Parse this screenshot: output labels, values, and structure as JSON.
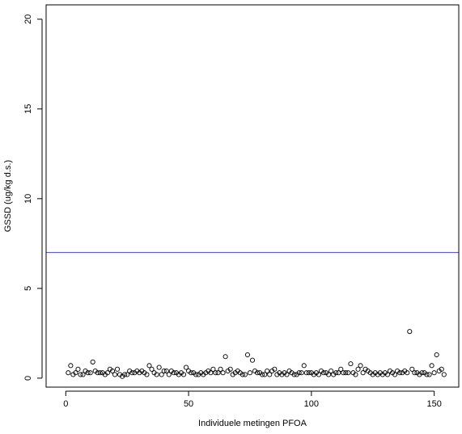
{
  "chart_data": {
    "type": "scatter",
    "title": "",
    "xlabel": "Individuele metingen PFOA",
    "ylabel": "GSSD (ug/kg d.s.)",
    "xlim": [
      -8,
      160
    ],
    "ylim": [
      -0.5,
      20.8
    ],
    "xticks": [
      0,
      50,
      100,
      150
    ],
    "yticks": [
      0,
      5,
      10,
      15,
      20
    ],
    "grid": false,
    "legend": "none",
    "marker": "open-circle",
    "marker_color": "#000000",
    "reference_line": {
      "y": 7.0,
      "color": "#5b5bd6"
    },
    "series": [
      {
        "x": [
          1,
          2,
          3,
          4,
          5,
          6,
          7,
          8,
          9,
          10,
          11,
          12,
          13,
          14,
          15,
          16,
          17,
          18,
          19,
          20,
          21,
          22,
          23,
          24,
          25,
          26,
          27,
          28,
          29,
          30,
          31,
          32,
          33,
          34,
          35,
          36,
          37,
          38,
          39,
          40,
          41,
          42,
          43,
          44,
          45,
          46,
          47,
          48,
          49,
          50,
          51,
          52,
          53,
          54,
          55,
          56,
          57,
          58,
          59,
          60,
          61,
          62,
          63,
          64,
          65,
          66,
          67,
          68,
          69,
          70,
          71,
          72,
          73,
          74,
          75,
          76,
          77,
          78,
          79,
          80,
          81,
          82,
          83,
          84,
          85,
          86,
          87,
          88,
          89,
          90,
          91,
          92,
          93,
          94,
          95,
          96,
          97,
          98,
          99,
          100,
          101,
          102,
          103,
          104,
          105,
          106,
          107,
          108,
          109,
          110,
          111,
          112,
          113,
          114,
          115,
          116,
          117,
          118,
          119,
          120,
          121,
          122,
          123,
          124,
          125,
          126,
          127,
          128,
          129,
          130,
          131,
          132,
          133,
          134,
          135,
          136,
          137,
          138,
          139,
          140,
          141,
          142,
          143,
          144,
          145,
          146,
          147,
          148,
          149,
          150,
          151,
          152,
          153,
          154
        ],
        "y": [
          0.3,
          0.7,
          0.2,
          0.3,
          0.5,
          0.2,
          0.2,
          0.4,
          0.3,
          0.3,
          0.9,
          0.4,
          0.3,
          0.3,
          0.3,
          0.2,
          0.3,
          0.5,
          0.4,
          0.2,
          0.5,
          0.2,
          0.1,
          0.2,
          0.2,
          0.4,
          0.3,
          0.3,
          0.4,
          0.3,
          0.4,
          0.3,
          0.2,
          0.7,
          0.5,
          0.3,
          0.2,
          0.6,
          0.2,
          0.4,
          0.4,
          0.2,
          0.4,
          0.3,
          0.3,
          0.2,
          0.3,
          0.2,
          0.6,
          0.4,
          0.3,
          0.3,
          0.2,
          0.2,
          0.3,
          0.2,
          0.3,
          0.4,
          0.3,
          0.5,
          0.3,
          0.3,
          0.5,
          0.3,
          1.2,
          0.4,
          0.5,
          0.2,
          0.3,
          0.4,
          0.3,
          0.2,
          0.2,
          1.3,
          0.3,
          1.0,
          0.4,
          0.3,
          0.3,
          0.2,
          0.2,
          0.4,
          0.2,
          0.4,
          0.5,
          0.2,
          0.3,
          0.2,
          0.3,
          0.2,
          0.4,
          0.3,
          0.2,
          0.2,
          0.3,
          0.3,
          0.7,
          0.3,
          0.3,
          0.3,
          0.2,
          0.3,
          0.2,
          0.4,
          0.3,
          0.3,
          0.2,
          0.4,
          0.2,
          0.3,
          0.3,
          0.5,
          0.3,
          0.3,
          0.3,
          0.8,
          0.3,
          0.2,
          0.5,
          0.7,
          0.3,
          0.5,
          0.4,
          0.3,
          0.2,
          0.3,
          0.2,
          0.3,
          0.2,
          0.3,
          0.2,
          0.4,
          0.3,
          0.2,
          0.4,
          0.3,
          0.3,
          0.4,
          0.3,
          2.6,
          0.5,
          0.3,
          0.3,
          0.2,
          0.3,
          0.3,
          0.2,
          0.2,
          0.7,
          0.3,
          1.3,
          0.4,
          0.5,
          0.2
        ]
      }
    ]
  }
}
